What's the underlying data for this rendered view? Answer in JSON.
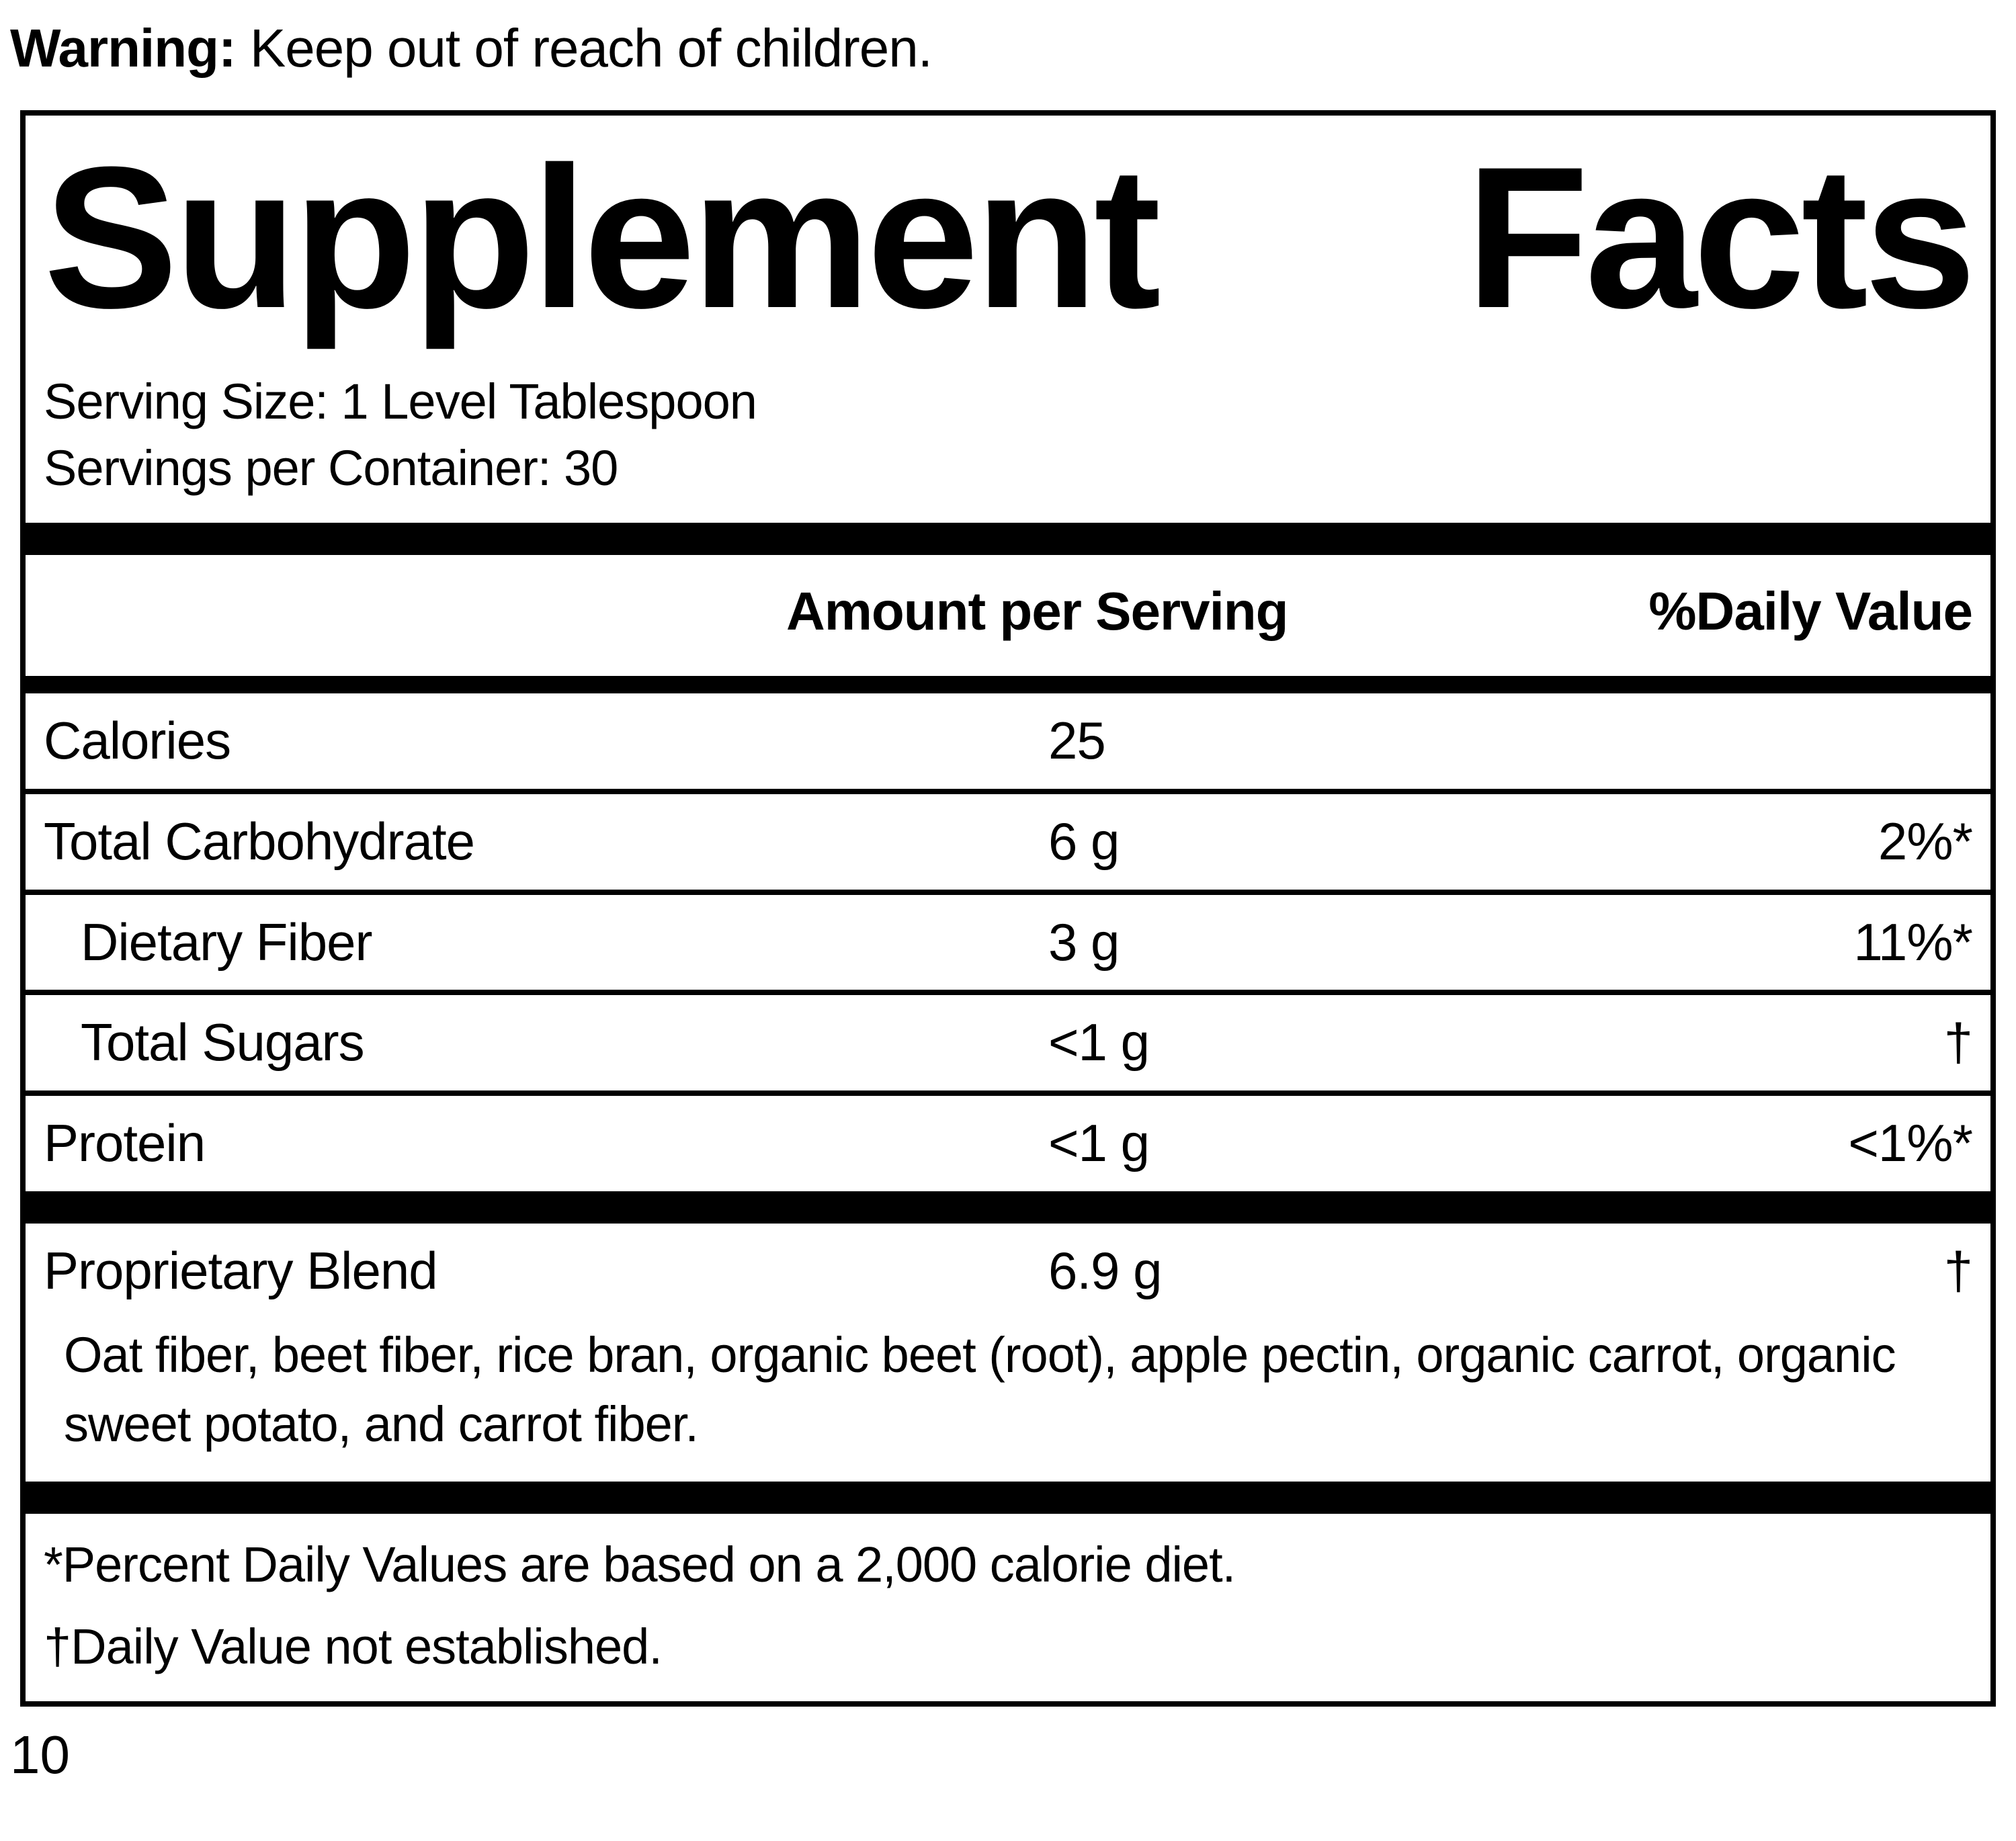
{
  "warning": {
    "label": "Warning:",
    "text": " Keep out of reach of children."
  },
  "panel": {
    "title_words": [
      "Supplement",
      "Facts"
    ],
    "title": "Supplement Facts",
    "serving_size": "Serving Size: 1 Level Tablespoon",
    "servings_per_container": "Servings per Container: 30",
    "columns": {
      "amount": "Amount per Serving",
      "daily_value": "%Daily Value"
    },
    "rows": [
      {
        "name": "Calories",
        "amount": "25",
        "dv": ""
      },
      {
        "name": "Total Carbohydrate",
        "amount": "6 g",
        "dv": "2%*"
      },
      {
        "name": "Dietary Fiber",
        "amount": "3 g",
        "dv": "11%*"
      },
      {
        "name": "Total Sugars",
        "amount": "<1 g",
        "dv": "†"
      },
      {
        "name": "Protein",
        "amount": "<1 g",
        "dv": "<1%*"
      }
    ],
    "proprietary_blend": {
      "name": "Proprietary Blend",
      "amount": "6.9 g",
      "dv": "†",
      "ingredients": "Oat fiber, beet fiber, rice bran, organic beet (root), apple pectin, organic carrot, organic sweet potato, and carrot fiber."
    },
    "footnotes": [
      "*Percent Daily Values are based on a 2,000 calorie diet.",
      "†Daily Value not established."
    ]
  },
  "page_number": "10"
}
